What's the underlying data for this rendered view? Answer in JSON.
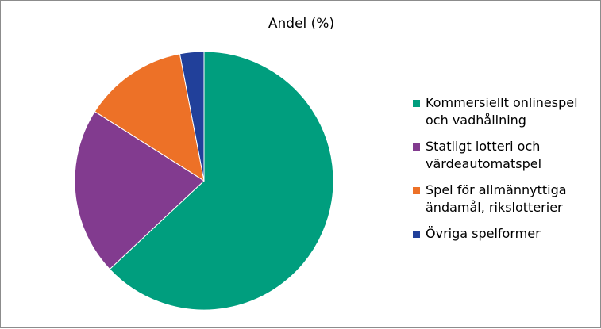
{
  "chart_data": {
    "type": "pie",
    "title": "Andel (%)",
    "categories": [
      "Kommersiellt onlinespel och vadhållning",
      "Statligt lotteri och värdeautomatspel",
      "Spel för allmännyttiga ändamål, rikslotterier",
      "Övriga spelformer"
    ],
    "values": [
      63,
      21,
      13,
      3
    ],
    "colors": [
      "#009e7e",
      "#823b8f",
      "#ed7127",
      "#21409a"
    ],
    "start_angle": "12 o'clock",
    "direction": "clockwise",
    "legend_position": "right"
  }
}
